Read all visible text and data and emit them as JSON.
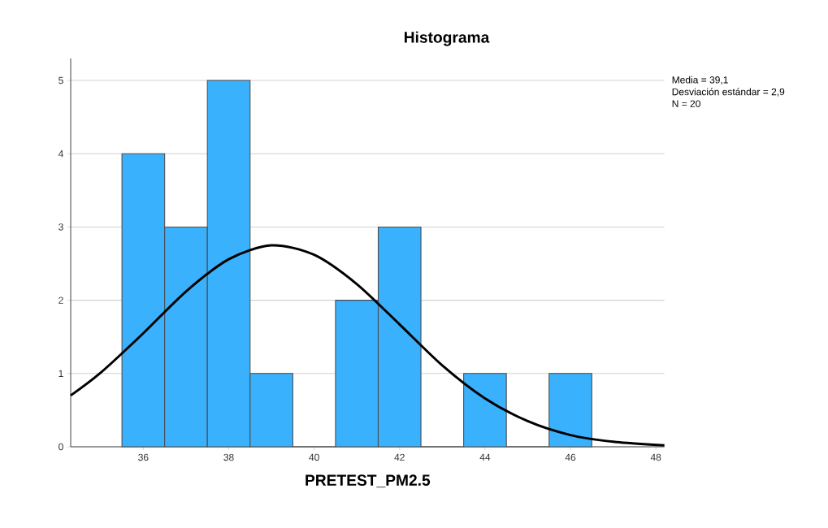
{
  "chart_data": {
    "type": "histogram",
    "title": "Histograma",
    "xlabel": "PRETEST_PM2.5",
    "annotations": [
      "Media = 39,1",
      "Desviación estándar = 2,9",
      "N = 20"
    ],
    "bins": [
      35.5,
      36.5,
      37.5,
      38.5,
      39.5,
      40.5,
      41.5,
      42.5,
      43.5,
      44.5,
      45.5,
      46.5
    ],
    "series": [
      {
        "color": "#3ab1fd",
        "values": [
          4,
          3,
          5,
          1,
          0,
          2,
          3,
          0,
          1,
          0,
          1
        ]
      },
      {
        "type": "line",
        "color": "#000000",
        "x": [
          34.3,
          35,
          36,
          37,
          38,
          39,
          40,
          41,
          42,
          43,
          44,
          45,
          46,
          47,
          48.2
        ],
        "values": [
          0.7,
          1.01,
          1.55,
          2.12,
          2.56,
          2.75,
          2.62,
          2.22,
          1.67,
          1.11,
          0.66,
          0.35,
          0.16,
          0.07,
          0.02
        ]
      }
    ],
    "xlim": [
      34.3,
      48.2
    ],
    "xticks": [
      36,
      38,
      40,
      42,
      44,
      46,
      48
    ],
    "ylim": [
      0,
      5.3
    ],
    "yticks": [
      0,
      1,
      2,
      3,
      4,
      5
    ],
    "grid": "y",
    "marker": "none",
    "line_style": "solid"
  }
}
